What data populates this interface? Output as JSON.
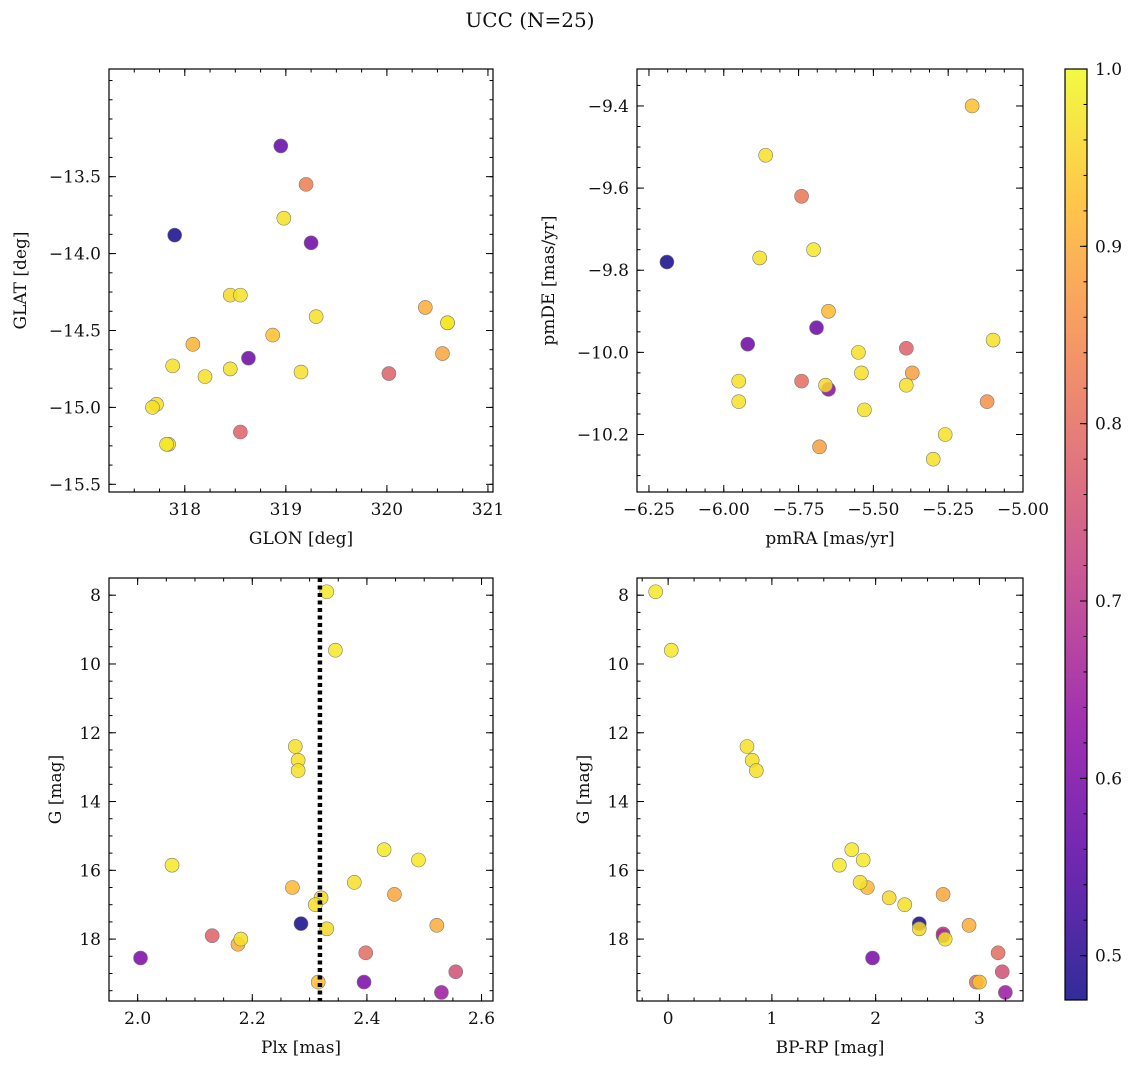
{
  "figure": {
    "title": "UCC (N=25)"
  },
  "colors": {
    "colormap": "plasma",
    "axis": "#000000",
    "vline": "#000000",
    "marker_edge": "#7a7a7a"
  },
  "colorbar": {
    "vmin": 0.475,
    "vmax": 1.0,
    "ticks": [
      0.5,
      0.6,
      0.7,
      0.8,
      0.9,
      1.0
    ],
    "tick_labels": [
      "0.5",
      "0.6",
      "0.7",
      "0.8",
      "0.9",
      "1.0"
    ]
  },
  "chart_data": [
    {
      "type": "scatter",
      "id": "glon-glat",
      "xlabel": "GLON [deg]",
      "ylabel": "GLAT [deg]",
      "xlim": [
        317.25,
        321.05
      ],
      "ylim": [
        -15.55,
        -12.8
      ],
      "y_inverted": false,
      "xticks": [
        318,
        319,
        320,
        321
      ],
      "xtick_labels": [
        "318",
        "319",
        "320",
        "321"
      ],
      "yticks": [
        -13.5,
        -14.0,
        -14.5,
        -15.0,
        -15.5
      ],
      "ytick_labels": [
        "−13.5",
        "−14.0",
        "−14.5",
        "−15.0",
        "−15.5"
      ],
      "x": [
        318.95,
        319.2,
        317.9,
        318.98,
        319.25,
        318.45,
        318.55,
        319.3,
        320.38,
        320.6,
        318.87,
        318.08,
        320.55,
        318.63,
        317.88,
        318.45,
        318.2,
        319.15,
        320.02,
        317.72,
        317.68,
        318.55,
        317.82,
        317.84,
        320.6
      ],
      "y": [
        -13.3,
        -13.55,
        -13.88,
        -13.77,
        -13.93,
        -14.27,
        -14.27,
        -14.41,
        -14.35,
        -14.45,
        -14.53,
        -14.59,
        -14.65,
        -14.68,
        -14.73,
        -14.75,
        -14.8,
        -14.77,
        -14.78,
        -14.98,
        -15.0,
        -15.16,
        -15.24,
        -15.24,
        -14.45
      ],
      "c": [
        0.57,
        0.83,
        0.48,
        0.97,
        0.58,
        0.96,
        0.97,
        0.97,
        0.9,
        0.98,
        0.93,
        0.91,
        0.89,
        0.58,
        0.97,
        0.97,
        0.97,
        0.97,
        0.78,
        0.97,
        0.97,
        0.78,
        0.98,
        0.96,
        0.97
      ]
    },
    {
      "type": "scatter",
      "id": "pmra-pmde",
      "xlabel": "pmRA [mas/yr]",
      "ylabel": "pmDE [mas/yr]",
      "xlim": [
        -6.29,
        -5.0
      ],
      "ylim": [
        -10.34,
        -9.31
      ],
      "y_inverted": false,
      "xticks": [
        -6.25,
        -6.0,
        -5.75,
        -5.5,
        -5.25,
        -5.0
      ],
      "xtick_labels": [
        "−6.25",
        "−6.00",
        "−5.75",
        "−5.50",
        "−5.25",
        "−5.00"
      ],
      "yticks": [
        -9.4,
        -9.6,
        -9.8,
        -10.0,
        -10.2
      ],
      "ytick_labels": [
        "−9.4",
        "−9.6",
        "−9.8",
        "−10.0",
        "−10.2"
      ],
      "x": [
        -5.17,
        -5.86,
        -5.74,
        -5.7,
        -6.19,
        -5.88,
        -5.65,
        -5.1,
        -5.69,
        -5.92,
        -5.39,
        -5.55,
        -5.37,
        -5.54,
        -5.95,
        -5.74,
        -5.66,
        -5.39,
        -5.65,
        -5.95,
        -5.12,
        -5.53,
        -5.26,
        -5.68,
        -5.3
      ],
      "y": [
        -9.4,
        -9.52,
        -9.62,
        -9.75,
        -9.78,
        -9.77,
        -9.9,
        -9.97,
        -9.94,
        -9.98,
        -9.99,
        -10.0,
        -10.05,
        -10.05,
        -10.07,
        -10.07,
        -10.08,
        -10.08,
        -10.09,
        -10.12,
        -10.12,
        -10.14,
        -10.2,
        -10.23,
        -10.26
      ],
      "c": [
        0.93,
        0.97,
        0.82,
        0.98,
        0.48,
        0.97,
        0.92,
        0.97,
        0.58,
        0.58,
        0.78,
        0.97,
        0.88,
        0.97,
        0.97,
        0.8,
        0.96,
        0.97,
        0.62,
        0.97,
        0.86,
        0.97,
        0.97,
        0.88,
        0.97
      ]
    },
    {
      "type": "scatter",
      "id": "plx-g",
      "xlabel": "Plx [mas]",
      "ylabel": "G [mag]",
      "xlim": [
        1.95,
        2.62
      ],
      "ylim": [
        19.8,
        7.5
      ],
      "y_inverted": true,
      "xticks": [
        2.0,
        2.2,
        2.4,
        2.6
      ],
      "xtick_labels": [
        "2.0",
        "2.2",
        "2.4",
        "2.6"
      ],
      "yticks": [
        8,
        10,
        12,
        14,
        16,
        18
      ],
      "ytick_labels": [
        "8",
        "10",
        "12",
        "14",
        "16",
        "18"
      ],
      "vline_x": 2.318,
      "x": [
        2.33,
        2.345,
        2.275,
        2.28,
        2.28,
        2.43,
        2.49,
        2.06,
        2.378,
        2.27,
        2.448,
        2.31,
        2.32,
        2.285,
        2.522,
        2.33,
        2.13,
        2.18,
        2.175,
        2.398,
        2.005,
        2.555,
        2.395,
        2.315,
        2.53
      ],
      "y": [
        7.9,
        9.6,
        12.4,
        12.8,
        13.1,
        15.4,
        15.7,
        15.85,
        16.35,
        16.5,
        16.7,
        17.0,
        16.8,
        17.55,
        17.6,
        17.7,
        17.9,
        18.0,
        18.15,
        18.4,
        18.55,
        18.95,
        19.25,
        19.25,
        19.55
      ],
      "c": [
        0.98,
        0.98,
        0.97,
        0.97,
        0.97,
        0.98,
        0.98,
        0.98,
        0.97,
        0.92,
        0.89,
        0.97,
        0.96,
        0.48,
        0.9,
        0.96,
        0.78,
        0.97,
        0.9,
        0.8,
        0.6,
        0.75,
        0.6,
        0.93,
        0.65
      ]
    },
    {
      "type": "scatter",
      "id": "bprp-g",
      "xlabel": "BP-RP [mag]",
      "ylabel": "G [mag]",
      "xlim": [
        -0.3,
        3.42
      ],
      "ylim": [
        19.8,
        7.5
      ],
      "y_inverted": true,
      "xticks": [
        0,
        1,
        2,
        3
      ],
      "xtick_labels": [
        "0",
        "1",
        "2",
        "3"
      ],
      "yticks": [
        8,
        10,
        12,
        14,
        16,
        18
      ],
      "ytick_labels": [
        "8",
        "10",
        "12",
        "14",
        "16",
        "18"
      ],
      "x": [
        -0.12,
        0.03,
        0.76,
        0.81,
        0.85,
        1.77,
        1.88,
        1.65,
        1.85,
        1.92,
        2.65,
        2.28,
        2.13,
        2.42,
        2.9,
        2.42,
        2.65,
        2.67,
        1.97,
        3.18,
        3.22,
        2.97,
        3.0,
        3.25,
        2.65
      ],
      "y": [
        7.9,
        9.6,
        12.4,
        12.8,
        13.1,
        15.4,
        15.7,
        15.85,
        16.35,
        16.5,
        16.7,
        17.0,
        16.8,
        17.55,
        17.6,
        17.7,
        17.9,
        18.0,
        18.55,
        18.4,
        18.95,
        19.25,
        19.25,
        19.55,
        17.85
      ],
      "c": [
        0.98,
        0.98,
        0.97,
        0.97,
        0.97,
        0.98,
        0.98,
        0.98,
        0.97,
        0.92,
        0.89,
        0.97,
        0.96,
        0.48,
        0.9,
        0.96,
        0.6,
        0.97,
        0.6,
        0.8,
        0.75,
        0.8,
        0.93,
        0.65,
        0.7
      ]
    }
  ]
}
